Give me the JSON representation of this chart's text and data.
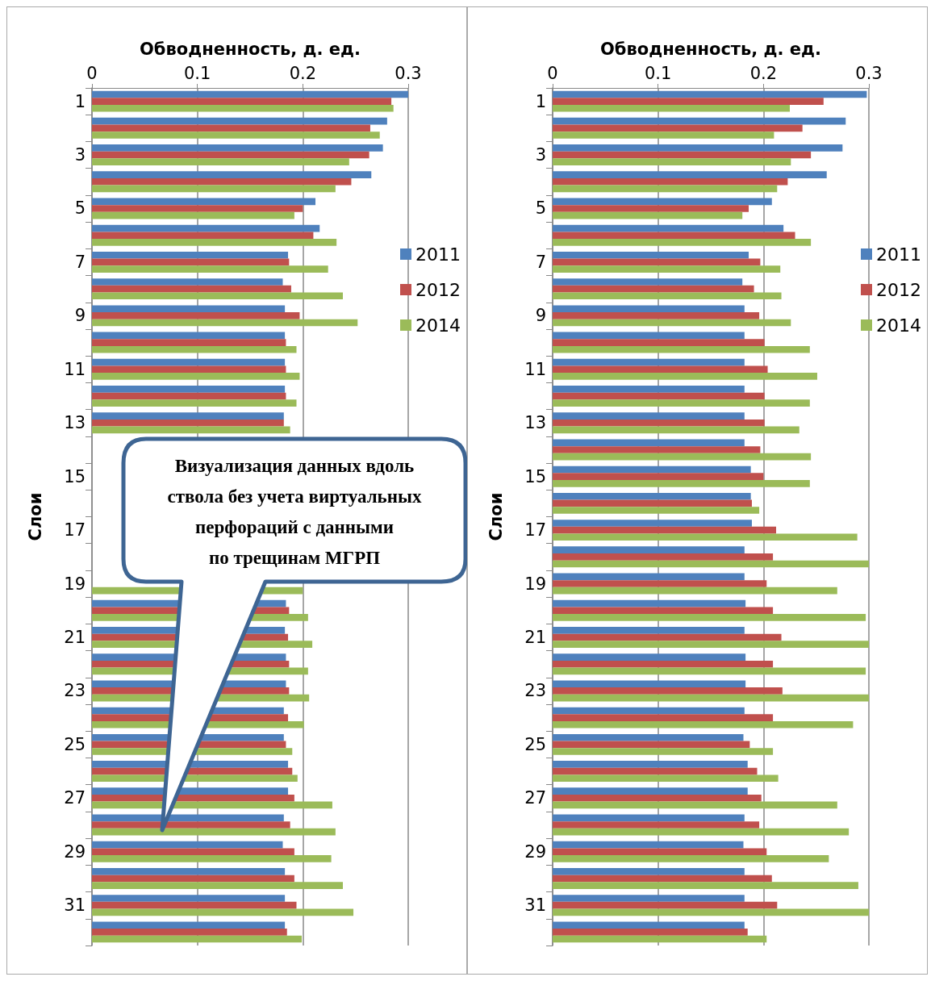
{
  "chart_data": [
    {
      "type": "bar",
      "orientation": "horizontal",
      "xlabel": "Обводненность, д. ед.",
      "ylabel": "Слои",
      "categories": [
        "1",
        null,
        "3",
        null,
        "5",
        null,
        "7",
        null,
        "9",
        null,
        "11",
        null,
        "13",
        null,
        "15",
        null,
        "17",
        null,
        "19",
        null,
        "21",
        null,
        "23",
        null,
        "25",
        null,
        "27",
        null,
        "29",
        null,
        "31",
        null
      ],
      "xlim": [
        0,
        0.3
      ],
      "xticks": [
        0,
        0.1,
        0.2,
        0.3
      ],
      "grid": "x",
      "legend": "right",
      "series": [
        {
          "name": "2011",
          "color": "#4f81bd",
          "values": [
            0.3,
            0.28,
            0.276,
            0.265,
            0.212,
            0.216,
            0.186,
            0.181,
            0.183,
            0.183,
            0.183,
            0.183,
            0.182,
            null,
            null,
            null,
            null,
            null,
            null,
            0.184,
            0.183,
            0.184,
            0.184,
            0.182,
            0.182,
            0.186,
            0.186,
            0.182,
            0.181,
            0.183,
            0.183,
            0.183
          ]
        },
        {
          "name": "2012",
          "color": "#c0504d",
          "values": [
            0.284,
            0.264,
            0.263,
            0.246,
            0.2,
            0.21,
            0.187,
            0.189,
            0.197,
            0.184,
            0.184,
            0.184,
            0.182,
            null,
            null,
            null,
            null,
            null,
            null,
            0.187,
            0.186,
            0.187,
            0.187,
            0.186,
            0.184,
            0.19,
            0.192,
            0.188,
            0.192,
            0.192,
            0.194,
            0.185
          ]
        },
        {
          "name": "2014",
          "color": "#9bbb59",
          "values": [
            0.286,
            0.273,
            0.244,
            0.231,
            0.192,
            0.232,
            0.224,
            0.238,
            0.252,
            0.194,
            0.197,
            0.194,
            0.188,
            null,
            null,
            null,
            null,
            null,
            0.2,
            0.205,
            0.209,
            0.205,
            0.206,
            0.201,
            0.19,
            0.195,
            0.228,
            0.231,
            0.227,
            0.238,
            0.248,
            0.199
          ]
        }
      ],
      "annotations": [
        "Визуализация данных вдоль\nствола без учета виртуальных\nперфораций с данными\nпо трещинам МГРП"
      ]
    },
    {
      "type": "bar",
      "orientation": "horizontal",
      "xlabel": "Обводненность, д. ед.",
      "ylabel": "Слои",
      "categories": [
        "1",
        null,
        "3",
        null,
        "5",
        null,
        "7",
        null,
        "9",
        null,
        "11",
        null,
        "13",
        null,
        "15",
        null,
        "17",
        null,
        "19",
        null,
        "21",
        null,
        "23",
        null,
        "25",
        null,
        "27",
        null,
        "29",
        null,
        "31",
        null
      ],
      "xlim": [
        0,
        0.3
      ],
      "xticks": [
        0,
        0.1,
        0.2,
        0.3
      ],
      "grid": "x",
      "legend": "right",
      "series": [
        {
          "name": "2011",
          "color": "#4f81bd",
          "values": [
            0.298,
            0.278,
            0.275,
            0.26,
            0.208,
            0.219,
            0.186,
            0.18,
            0.182,
            0.182,
            0.182,
            0.182,
            0.182,
            0.182,
            0.188,
            0.188,
            0.189,
            0.182,
            0.182,
            0.183,
            0.182,
            0.183,
            0.183,
            0.182,
            0.181,
            0.185,
            0.185,
            0.182,
            0.181,
            0.182,
            0.182,
            0.182
          ]
        },
        {
          "name": "2012",
          "color": "#c0504d",
          "values": [
            0.257,
            0.237,
            0.245,
            0.223,
            0.186,
            0.23,
            0.197,
            0.191,
            0.196,
            0.201,
            0.204,
            0.201,
            0.201,
            0.197,
            0.2,
            0.189,
            0.212,
            0.209,
            0.203,
            0.209,
            0.217,
            0.209,
            0.218,
            0.209,
            0.187,
            0.194,
            0.198,
            0.196,
            0.203,
            0.208,
            0.213,
            0.185
          ]
        },
        {
          "name": "2014",
          "color": "#9bbb59",
          "values": [
            0.225,
            0.21,
            0.226,
            0.213,
            0.18,
            0.245,
            0.216,
            0.217,
            0.226,
            0.244,
            0.251,
            0.244,
            0.234,
            0.245,
            0.244,
            0.196,
            0.289,
            0.3,
            0.27,
            0.297,
            0.3,
            0.297,
            0.3,
            0.285,
            0.209,
            0.214,
            0.27,
            0.281,
            0.262,
            0.29,
            0.3,
            0.203
          ]
        }
      ]
    }
  ]
}
